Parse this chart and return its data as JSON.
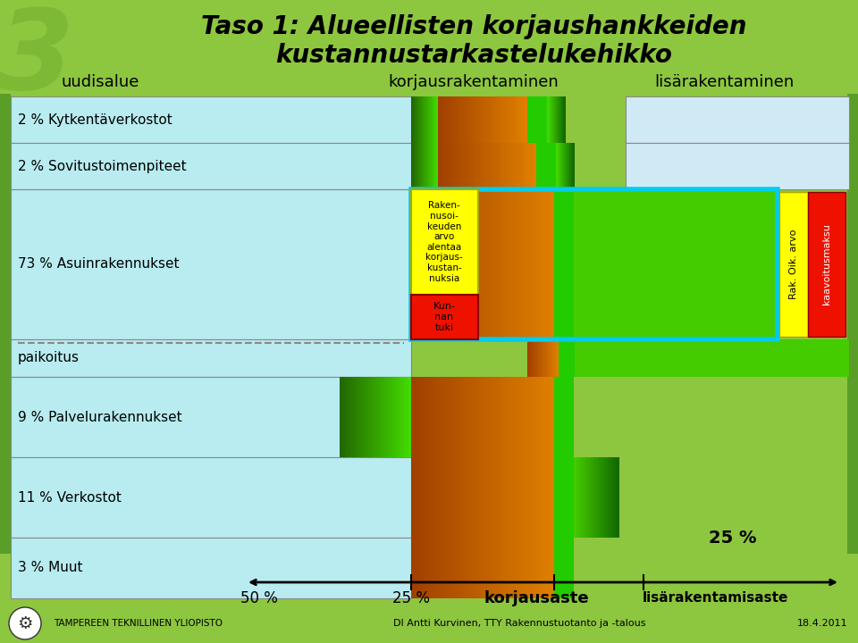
{
  "title_line1": "Taso 1: Alueellisten korjaushankkeiden",
  "title_line2": "kustannustarkastelukehikko",
  "bg_color": "#8dc63f",
  "col_header1": "uudisalue",
  "col_header2": "korjausrakentaminen",
  "col_header3": "lisärakentaminen",
  "row_labels": [
    "2 % Kytkentäverkostot",
    "2 % Sovitustoimenpiteet",
    "73 % Asuinrakennukset",
    "paikoitus",
    "9 % Palvelurakennukset",
    "11 % Verkostot",
    "3 % Muut"
  ],
  "light_blue": "#b8ecf0",
  "light_blue_right": "#cce8f0",
  "light_green_bg": "#c8e89a",
  "orange_left": "#a04000",
  "orange_right": "#e08000",
  "bright_green": "#22cc00",
  "mid_green": "#44bb00",
  "dark_green": "#228800",
  "yellow": "#ffff00",
  "red": "#ee1100",
  "cyan": "#00ccee",
  "annotation1": "Raken-\nnusoi-\nkeuden\narvo\nalentaa\nkorjaus-\nkustan-\nnuksia",
  "annotation2": "Kun-\nnan\ntuki",
  "annotation3": "Rak. Oik. arvo",
  "annotation4": "kaavoitusmaksu",
  "percent_25": "25 %",
  "bottom_50": "50 %",
  "bottom_25": "25 %",
  "bottom_korjaus": "korjausaste",
  "bottom_lisa": "lisärakentamisaste",
  "footer": "DI Antti Kurvinen, TTY Rakennustuotanto ja -talous",
  "date": "18.4.2011",
  "university": "TAMPEREEN TEKNILLINEN YLIOPISTO"
}
